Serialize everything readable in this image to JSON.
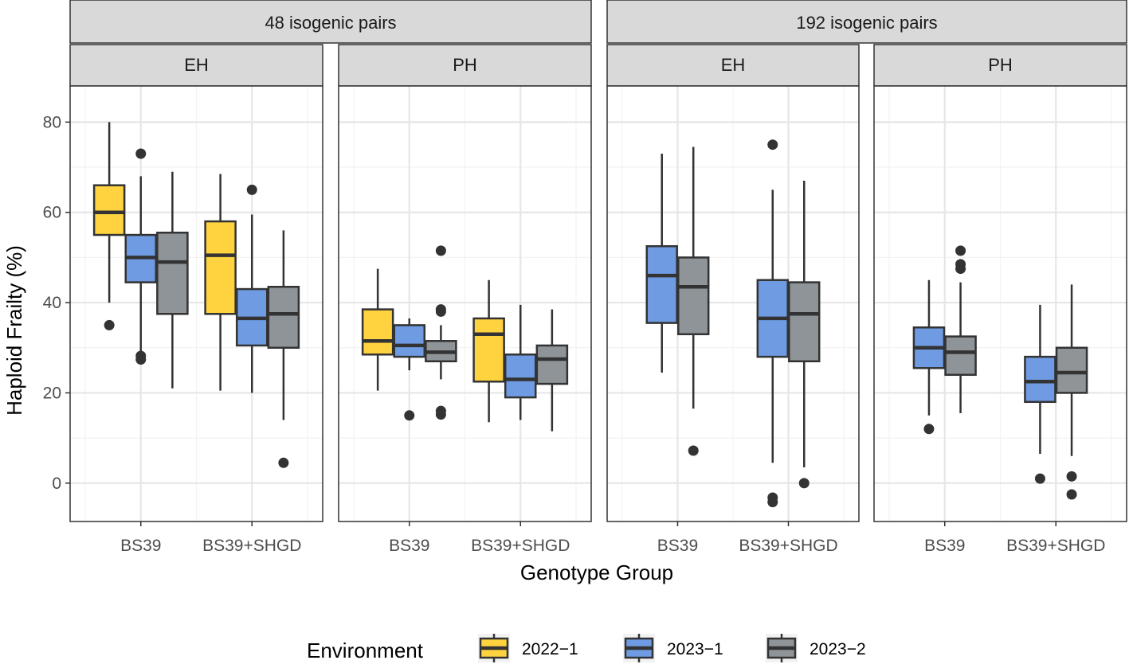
{
  "chart_data": {
    "type": "boxplot",
    "xlabel": "Genotype Group",
    "ylabel": "Haploid Frailty (%)",
    "ylim": [
      -8.5,
      88
    ],
    "yticks": [
      0,
      20,
      40,
      60,
      80
    ],
    "categories": [
      "BS39",
      "BS39+SHGD"
    ],
    "legend": {
      "title": "Environment",
      "position": "bottom",
      "items": [
        {
          "label": "2022−1",
          "color": "#FFD23F"
        },
        {
          "label": "2023−1",
          "color": "#6F9BE3"
        },
        {
          "label": "2023−2",
          "color": "#8E9498"
        }
      ]
    },
    "groups": [
      {
        "label": "48 isogenic pairs",
        "panels": [
          {
            "label": "EH",
            "envs": [
              "2022−1",
              "2023−1",
              "2023−2"
            ],
            "boxes": [
              {
                "category": "BS39",
                "env": "2022−1",
                "lower": 40,
                "q1": 55,
                "median": 60,
                "q3": 66,
                "upper": 80,
                "outliers": [
                  35
                ]
              },
              {
                "category": "BS39",
                "env": "2023−1",
                "lower": 29,
                "q1": 44.5,
                "median": 50,
                "q3": 55,
                "upper": 68,
                "outliers": [
                  73,
                  28.2,
                  27.4
                ]
              },
              {
                "category": "BS39",
                "env": "2023−2",
                "lower": 21,
                "q1": 37.5,
                "median": 49,
                "q3": 55.5,
                "upper": 69,
                "outliers": []
              },
              {
                "category": "BS39+SHGD",
                "env": "2022−1",
                "lower": 20.5,
                "q1": 37.5,
                "median": 50.5,
                "q3": 58,
                "upper": 68.5,
                "outliers": []
              },
              {
                "category": "BS39+SHGD",
                "env": "2023−1",
                "lower": 20,
                "q1": 30.5,
                "median": 36.5,
                "q3": 43,
                "upper": 59.5,
                "outliers": [
                  65
                ]
              },
              {
                "category": "BS39+SHGD",
                "env": "2023−2",
                "lower": 14,
                "q1": 30,
                "median": 37.5,
                "q3": 43.5,
                "upper": 56,
                "outliers": [
                  4.5
                ]
              }
            ]
          },
          {
            "label": "PH",
            "envs": [
              "2022−1",
              "2023−1",
              "2023−2"
            ],
            "boxes": [
              {
                "category": "BS39",
                "env": "2022−1",
                "lower": 20.5,
                "q1": 28.5,
                "median": 31.5,
                "q3": 38.5,
                "upper": 47.5,
                "outliers": []
              },
              {
                "category": "BS39",
                "env": "2023−1",
                "lower": 25,
                "q1": 28,
                "median": 30.5,
                "q3": 35,
                "upper": 36.5,
                "outliers": [
                  15
                ]
              },
              {
                "category": "BS39",
                "env": "2023−2",
                "lower": 23,
                "q1": 27,
                "median": 29,
                "q3": 31.5,
                "upper": 35,
                "outliers": [
                  51.5,
                  38.5,
                  38,
                  16,
                  15.2
                ]
              },
              {
                "category": "BS39+SHGD",
                "env": "2022−1",
                "lower": 13.5,
                "q1": 22.5,
                "median": 33,
                "q3": 36.5,
                "upper": 45,
                "outliers": []
              },
              {
                "category": "BS39+SHGD",
                "env": "2023−1",
                "lower": 14,
                "q1": 19,
                "median": 23,
                "q3": 28.5,
                "upper": 39.5,
                "outliers": []
              },
              {
                "category": "BS39+SHGD",
                "env": "2023−2",
                "lower": 11.5,
                "q1": 22,
                "median": 27.5,
                "q3": 30.5,
                "upper": 38.5,
                "outliers": []
              }
            ]
          }
        ]
      },
      {
        "label": "192 isogenic pairs",
        "panels": [
          {
            "label": "EH",
            "envs": [
              "2023−1",
              "2023−2"
            ],
            "boxes": [
              {
                "category": "BS39",
                "env": "2023−1",
                "lower": 24.5,
                "q1": 35.5,
                "median": 46,
                "q3": 52.5,
                "upper": 73,
                "outliers": []
              },
              {
                "category": "BS39",
                "env": "2023−2",
                "lower": 16.5,
                "q1": 33,
                "median": 43.5,
                "q3": 50,
                "upper": 74.5,
                "outliers": [
                  7.2
                ]
              },
              {
                "category": "BS39+SHGD",
                "env": "2023−1",
                "lower": 4.5,
                "q1": 28,
                "median": 36.5,
                "q3": 45,
                "upper": 65,
                "outliers": [
                  75,
                  -3.2,
                  -4.2
                ]
              },
              {
                "category": "BS39+SHGD",
                "env": "2023−2",
                "lower": 3.5,
                "q1": 27,
                "median": 37.5,
                "q3": 44.5,
                "upper": 67,
                "outliers": [
                  0
                ]
              }
            ]
          },
          {
            "label": "PH",
            "envs": [
              "2023−1",
              "2023−2"
            ],
            "boxes": [
              {
                "category": "BS39",
                "env": "2023−1",
                "lower": 15,
                "q1": 25.5,
                "median": 30,
                "q3": 34.5,
                "upper": 45,
                "outliers": [
                  12
                ]
              },
              {
                "category": "BS39",
                "env": "2023−2",
                "lower": 15.5,
                "q1": 24,
                "median": 29,
                "q3": 32.5,
                "upper": 44.5,
                "outliers": [
                  51.5,
                  48.5,
                  47.5
                ]
              },
              {
                "category": "BS39+SHGD",
                "env": "2023−1",
                "lower": 6.5,
                "q1": 18,
                "median": 22.5,
                "q3": 28,
                "upper": 39.5,
                "outliers": [
                  1
                ]
              },
              {
                "category": "BS39+SHGD",
                "env": "2023−2",
                "lower": 6,
                "q1": 20,
                "median": 24.5,
                "q3": 30,
                "upper": 44,
                "outliers": [
                  1.5,
                  -2.5
                ]
              }
            ]
          }
        ]
      }
    ]
  }
}
